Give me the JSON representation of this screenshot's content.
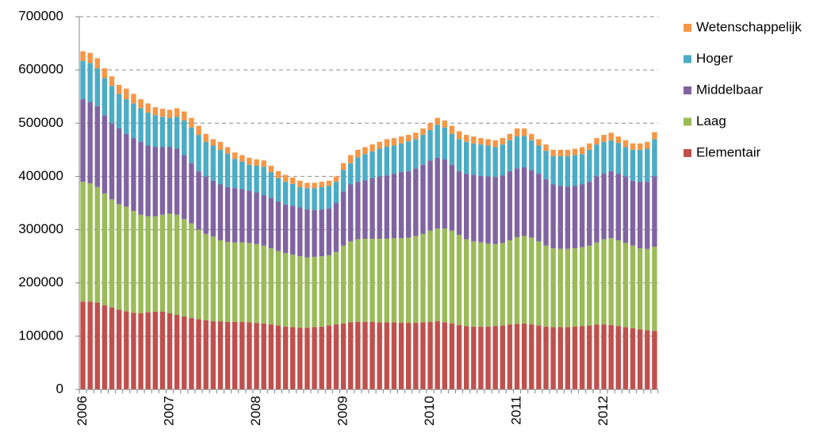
{
  "chart_data": {
    "type": "stacked_bar",
    "categories": [
      "2006",
      null,
      null,
      null,
      null,
      null,
      null,
      null,
      null,
      null,
      null,
      null,
      "2007",
      null,
      null,
      null,
      null,
      null,
      null,
      null,
      null,
      null,
      null,
      null,
      "2008",
      null,
      null,
      null,
      null,
      null,
      null,
      null,
      null,
      null,
      null,
      null,
      "2009",
      null,
      null,
      null,
      null,
      null,
      null,
      null,
      null,
      null,
      null,
      null,
      "2010",
      null,
      null,
      null,
      null,
      null,
      null,
      null,
      null,
      null,
      null,
      null,
      "2011",
      null,
      null,
      null,
      null,
      null,
      null,
      null,
      null,
      null,
      null,
      null,
      "2012",
      null,
      null,
      null,
      null,
      null,
      null,
      null
    ],
    "series": [
      {
        "name": "Elementair",
        "color": "#c0504d",
        "values": [
          165000,
          165000,
          163000,
          158000,
          154000,
          150000,
          147000,
          144000,
          143000,
          145000,
          146000,
          146000,
          143000,
          140000,
          137000,
          134000,
          132000,
          130000,
          128000,
          128000,
          127000,
          127000,
          127000,
          126000,
          125000,
          124000,
          122000,
          120000,
          118000,
          117000,
          116000,
          116000,
          117000,
          118000,
          120000,
          122000,
          124000,
          126000,
          127000,
          127000,
          127000,
          126000,
          126000,
          126000,
          125000,
          125000,
          125000,
          126000,
          127000,
          128000,
          126000,
          124000,
          121000,
          119000,
          118000,
          118000,
          118000,
          119000,
          120000,
          122000,
          123000,
          124000,
          122000,
          120000,
          118000,
          117000,
          117000,
          117000,
          118000,
          119000,
          120000,
          122000,
          122000,
          121000,
          119000,
          117000,
          115000,
          113000,
          111000,
          110000
        ]
      },
      {
        "name": "Laag",
        "color": "#9bbb59",
        "values": [
          225000,
          222000,
          217000,
          210000,
          203000,
          198000,
          196000,
          191000,
          185000,
          180000,
          179000,
          182000,
          187000,
          188000,
          183000,
          178000,
          168000,
          162000,
          159000,
          152000,
          150000,
          149000,
          149000,
          149000,
          148000,
          146000,
          143000,
          140000,
          138000,
          136000,
          134000,
          132000,
          132000,
          132000,
          132000,
          136000,
          146000,
          152000,
          155000,
          156000,
          156000,
          157000,
          157000,
          158000,
          159000,
          160000,
          163000,
          166000,
          171000,
          174000,
          176000,
          174000,
          169000,
          163000,
          160000,
          158000,
          156000,
          154000,
          155000,
          158000,
          163000,
          164000,
          163000,
          158000,
          152000,
          148000,
          147000,
          147000,
          147000,
          148000,
          150000,
          154000,
          160000,
          163000,
          161000,
          158000,
          155000,
          152000,
          153000,
          158000
        ]
      },
      {
        "name": "Middelbaar",
        "color": "#8064a2",
        "values": [
          155000,
          153000,
          152000,
          147000,
          143000,
          142000,
          137000,
          137000,
          137000,
          133000,
          130000,
          127000,
          125000,
          124000,
          120000,
          113000,
          110000,
          108000,
          105000,
          105000,
          103000,
          102000,
          100000,
          98000,
          97000,
          95000,
          95000,
          93000,
          91000,
          92000,
          92000,
          90000,
          88000,
          88000,
          88000,
          92000,
          102000,
          107000,
          108000,
          110000,
          114000,
          117000,
          119000,
          121000,
          124000,
          125000,
          127000,
          130000,
          132000,
          133000,
          130000,
          124000,
          120000,
          123000,
          125000,
          125000,
          126000,
          126000,
          127000,
          130000,
          129000,
          129000,
          127000,
          127000,
          125000,
          120000,
          118000,
          117000,
          117000,
          118000,
          120000,
          124000,
          123000,
          126000,
          125000,
          125000,
          122000,
          125000,
          126000,
          132000
        ]
      },
      {
        "name": "Hoger",
        "color": "#4bacc6",
        "values": [
          72000,
          73000,
          71000,
          70000,
          70000,
          65000,
          65000,
          65000,
          63000,
          62000,
          60000,
          57000,
          55000,
          60000,
          65000,
          67000,
          68000,
          65000,
          66000,
          65000,
          63000,
          55000,
          52000,
          49000,
          50000,
          53000,
          48000,
          44000,
          43000,
          41000,
          38000,
          40000,
          41000,
          42000,
          42000,
          40000,
          40000,
          40000,
          46000,
          49000,
          50000,
          52000,
          54000,
          53000,
          54000,
          56000,
          55000,
          56000,
          57000,
          62000,
          60000,
          58000,
          60000,
          60000,
          59000,
          59000,
          58000,
          56000,
          58000,
          58000,
          60000,
          59000,
          56000,
          53000,
          53000,
          53000,
          56000,
          57000,
          58000,
          57000,
          60000,
          60000,
          60000,
          58000,
          58000,
          55000,
          58000,
          60000,
          62000,
          70000
        ]
      },
      {
        "name": "Wetenschappelijk",
        "color": "#f79646",
        "values": [
          18000,
          19000,
          19000,
          18000,
          18000,
          17000,
          20000,
          18000,
          17000,
          17000,
          15000,
          15000,
          15000,
          16000,
          17000,
          18000,
          17000,
          15000,
          12000,
          15000,
          12000,
          12000,
          12000,
          13000,
          12000,
          12000,
          12000,
          13000,
          13000,
          12000,
          12000,
          10000,
          10000,
          10000,
          10000,
          10000,
          13000,
          15000,
          14000,
          13000,
          13000,
          13000,
          14000,
          14000,
          13000,
          12000,
          12000,
          12000,
          13000,
          13000,
          13000,
          15000,
          15000,
          13000,
          13000,
          12000,
          12000,
          13000,
          12000,
          12000,
          15000,
          14000,
          12000,
          12000,
          12000,
          12000,
          12000,
          12000,
          12000,
          13000,
          12000,
          12000,
          13000,
          14000,
          12000,
          13000,
          12000,
          12000,
          13000,
          13000
        ]
      }
    ],
    "ylim": [
      0,
      700000
    ],
    "yticks": [
      0,
      100000,
      200000,
      300000,
      400000,
      500000,
      600000,
      700000
    ],
    "grid": true,
    "legend": "right"
  }
}
